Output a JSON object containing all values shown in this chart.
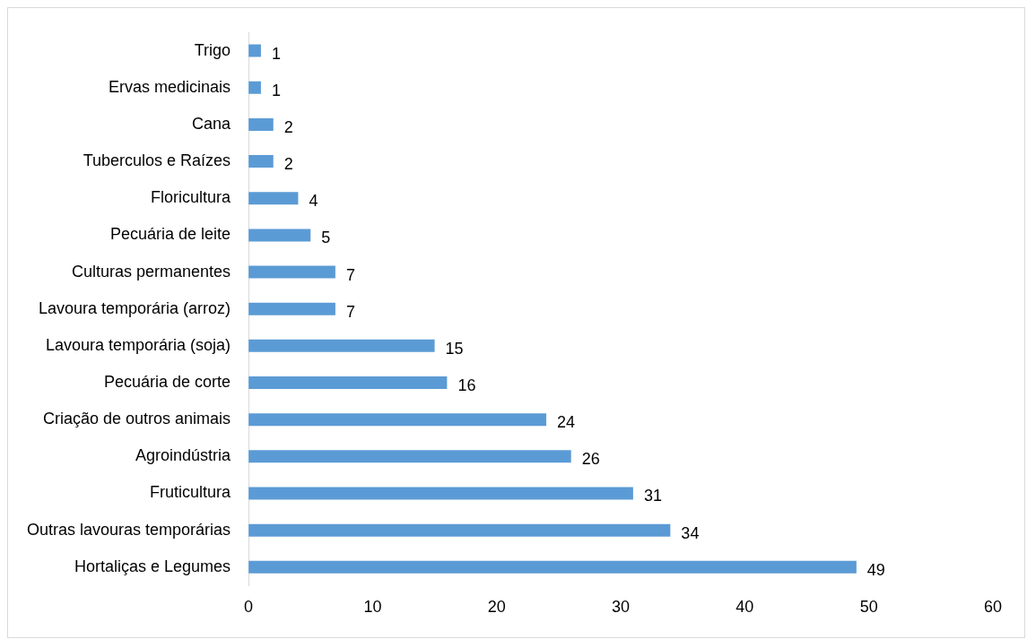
{
  "chart_data": {
    "type": "bar",
    "orientation": "horizontal",
    "categories": [
      "Trigo",
      "Ervas medicinais",
      "Cana",
      "Tuberculos e Raízes",
      "Floricultura",
      "Pecuária de leite",
      "Culturas permanentes",
      "Lavoura temporária (arroz)",
      "Lavoura temporária (soja)",
      "Pecuária de corte",
      "Criação de outros animais",
      "Agroindústria",
      "Fruticultura",
      "Outras lavouras temporárias",
      "Hortaliças e Legumes"
    ],
    "values": [
      1,
      1,
      2,
      2,
      4,
      5,
      7,
      7,
      15,
      16,
      24,
      26,
      31,
      34,
      49
    ],
    "color": "#5b9bd5",
    "xlim": [
      0,
      60
    ],
    "xticks": [
      0,
      10,
      20,
      30,
      40,
      50,
      60
    ],
    "data_labels": true,
    "grid": false,
    "legend": false
  }
}
